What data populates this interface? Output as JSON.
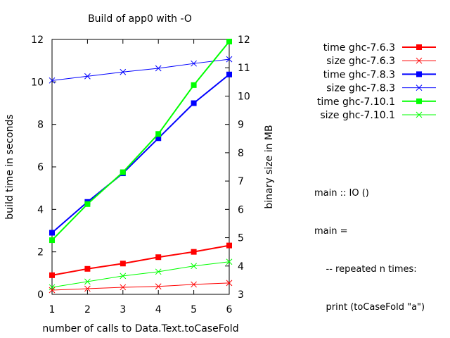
{
  "chart_data": {
    "type": "line",
    "title": "Build of app0 with -O",
    "xlabel": "number of calls to Data.Text.toCaseFold",
    "ylabel": "build time in seconds",
    "y2label": "binary size in MB",
    "x": [
      1,
      2,
      3,
      4,
      5,
      6
    ],
    "xlim": [
      1,
      6
    ],
    "ylim": [
      0,
      12
    ],
    "y2lim": [
      3,
      12
    ],
    "xticks": [
      "1",
      "2",
      "3",
      "4",
      "5",
      "6"
    ],
    "yticks": [
      "0",
      "2",
      "4",
      "6",
      "8",
      "10",
      "12"
    ],
    "y2ticks": [
      "3",
      "4",
      "5",
      "6",
      "7",
      "8",
      "9",
      "10",
      "11",
      "12"
    ],
    "grid": false,
    "legend_position": "top-right, outside plot",
    "series": [
      {
        "name": "time ghc-7.6.3",
        "axis": "y",
        "marker": "square",
        "color": "#ff0000",
        "width": 2,
        "values": [
          0.9,
          1.2,
          1.45,
          1.75,
          2.0,
          2.3
        ]
      },
      {
        "name": "size ghc-7.6.3",
        "axis": "y2",
        "marker": "x",
        "color": "#ff0000",
        "width": 1,
        "values": [
          3.15,
          3.2,
          3.25,
          3.28,
          3.35,
          3.4
        ]
      },
      {
        "name": "time ghc-7.8.3",
        "axis": "y",
        "marker": "square",
        "color": "#0000ff",
        "width": 2,
        "values": [
          2.9,
          4.35,
          5.7,
          7.35,
          9.0,
          10.35
        ]
      },
      {
        "name": "size ghc-7.8.3",
        "axis": "y2",
        "marker": "x",
        "color": "#0000ff",
        "width": 1,
        "values": [
          10.55,
          10.7,
          10.85,
          10.98,
          11.15,
          11.3
        ]
      },
      {
        "name": "time ghc-7.10.1",
        "axis": "y",
        "marker": "square",
        "color": "#00ff00",
        "width": 2,
        "values": [
          2.55,
          4.25,
          5.75,
          7.55,
          9.85,
          11.9
        ]
      },
      {
        "name": "size ghc-7.10.1",
        "axis": "y2",
        "marker": "x",
        "color": "#00ff00",
        "width": 1,
        "values": [
          3.25,
          3.45,
          3.65,
          3.8,
          4.0,
          4.15
        ]
      }
    ]
  },
  "annotation": {
    "lines": [
      "main :: IO ()",
      "main =",
      "    -- repeated n times:",
      "    print (toCaseFold \"a\")"
    ]
  }
}
